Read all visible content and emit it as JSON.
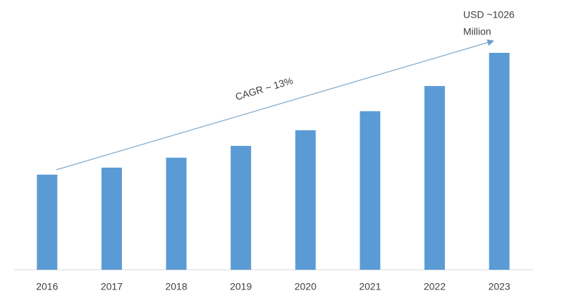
{
  "chart_data": {
    "type": "bar",
    "categories": [
      "2016",
      "2017",
      "2018",
      "2019",
      "2020",
      "2021",
      "2022",
      "2023"
    ],
    "values": [
      450,
      483,
      530,
      586,
      660,
      750,
      869,
      1026
    ],
    "color": "#5b9bd5",
    "annotations": {
      "value_note": [
        "USD ~1026",
        "Million"
      ],
      "trend": "CAGR ~ 13%"
    }
  }
}
